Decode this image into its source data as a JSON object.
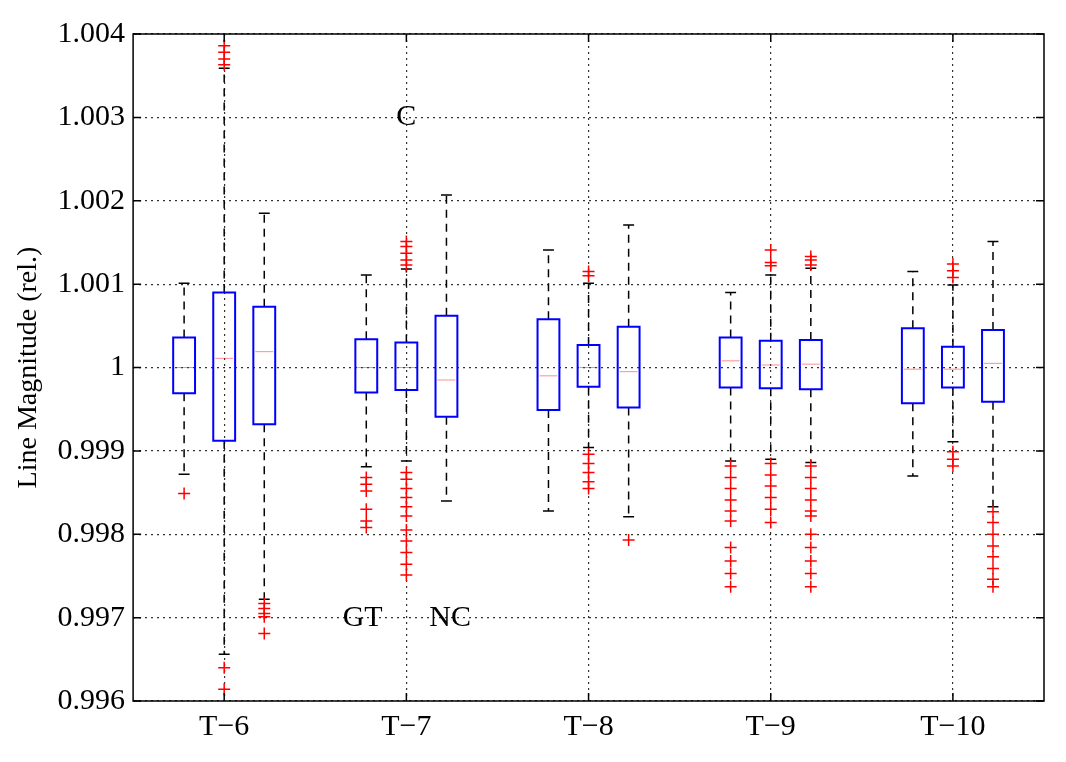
{
  "chart_data": {
    "type": "box",
    "ylabel": "Line Magnitude (rel.)",
    "categories": [
      "T−6",
      "T−7",
      "T−8",
      "T−9",
      "T−10"
    ],
    "ylim": [
      0.996,
      1.004
    ],
    "yticks": [
      0.996,
      0.997,
      0.998,
      0.999,
      1,
      1.001,
      1.002,
      1.003,
      1.004
    ],
    "grid": true,
    "marker": "cross",
    "annotations": [
      "GT",
      "C",
      "NC"
    ],
    "series": [
      {
        "color": "#0000ff",
        "boxes": [
          {
            "low": 0.99872,
            "q1": 0.99969,
            "median": 1.0,
            "q3": 1.00036,
            "high": 1.00101,
            "outliers": [
              0.99849
            ]
          },
          {
            "low": 0.99881,
            "q1": 0.9997,
            "median": 1.0,
            "q3": 1.00034,
            "high": 1.00111,
            "outliers": [
              0.99868,
              0.9986,
              0.99852,
              0.9983,
              0.99816,
              0.99808
            ]
          },
          {
            "low": 0.99828,
            "q1": 0.99949,
            "median": 0.9999,
            "q3": 1.00058,
            "high": 1.00141
          },
          {
            "low": 0.99888,
            "q1": 0.99976,
            "median": 1.00008,
            "q3": 1.00036,
            "high": 1.0009,
            "outliers": [
              0.99882,
              0.99868,
              0.99855,
              0.99841,
              0.99828,
              0.99816,
              0.99784,
              0.99768,
              0.99753,
              0.99737
            ]
          },
          {
            "low": 0.9987,
            "q1": 0.99957,
            "median": 0.99998,
            "q3": 1.00047,
            "high": 1.00115
          }
        ]
      },
      {
        "color": "#0000ff",
        "boxes": [
          {
            "low": 0.99656,
            "q1": 0.99912,
            "median": 1.00011,
            "q3": 1.0009,
            "high": 1.00359,
            "outliers": [
              1.00386,
              1.00378,
              1.0037,
              1.00363,
              0.9964,
              0.99614
            ]
          },
          {
            "low": 0.99888,
            "q1": 0.99973,
            "median": 1.0,
            "q3": 1.0003,
            "high": 1.00118,
            "outliers": [
              1.00151,
              1.00145,
              1.00137,
              1.00129,
              1.00123,
              0.99874,
              0.99866,
              0.99855,
              0.99844,
              0.99833,
              0.99822,
              0.99805,
              0.99792,
              0.99778,
              0.99764,
              0.99751
            ]
          },
          {
            "low": 0.99904,
            "q1": 0.99977,
            "median": 1.0,
            "q3": 1.00027,
            "high": 1.00101,
            "outliers": [
              1.00115,
              1.0011,
              0.99896,
              0.99885,
              0.99874,
              0.99863,
              0.99855
            ]
          },
          {
            "low": 0.9989,
            "q1": 0.99975,
            "median": 1.00003,
            "q3": 1.00032,
            "high": 1.00111,
            "outliers": [
              1.00141,
              1.00126,
              1.00122,
              0.99885,
              0.99871,
              0.99858,
              0.99844,
              0.9983,
              0.99814
            ]
          },
          {
            "low": 0.99911,
            "q1": 0.99976,
            "median": 0.99998,
            "q3": 1.00025,
            "high": 1.00099,
            "outliers": [
              1.00124,
              1.00116,
              1.00108,
              0.99899,
              0.9989,
              0.99882
            ]
          }
        ]
      },
      {
        "color": "#0000ff",
        "boxes": [
          {
            "low": 0.99722,
            "q1": 0.99932,
            "median": 1.00019,
            "q3": 1.00073,
            "high": 1.00185,
            "outliers": [
              0.99717,
              0.99711,
              0.99705,
              0.99701,
              0.99681
            ]
          },
          {
            "low": 0.9984,
            "q1": 0.99941,
            "median": 0.99985,
            "q3": 1.00062,
            "high": 1.00207
          },
          {
            "low": 0.99821,
            "q1": 0.99952,
            "median": 0.99995,
            "q3": 1.00049,
            "high": 1.00171,
            "outliers": [
              0.99793
            ]
          },
          {
            "low": 0.99886,
            "q1": 0.99974,
            "median": 1.00004,
            "q3": 1.00033,
            "high": 1.00119,
            "outliers": [
              1.00133,
              1.00129,
              1.00123,
              0.99882,
              0.99868,
              0.99855,
              0.99841,
              0.99828,
              0.99822,
              0.998,
              0.99784,
              0.99768,
              0.99753,
              0.99737
            ]
          },
          {
            "low": 0.99833,
            "q1": 0.99959,
            "median": 1.00005,
            "q3": 1.00045,
            "high": 1.00151,
            "outliers": [
              0.99827,
              0.99814,
              0.998,
              0.99786,
              0.99773,
              0.99759,
              0.99746,
              0.99737
            ]
          }
        ]
      }
    ]
  }
}
